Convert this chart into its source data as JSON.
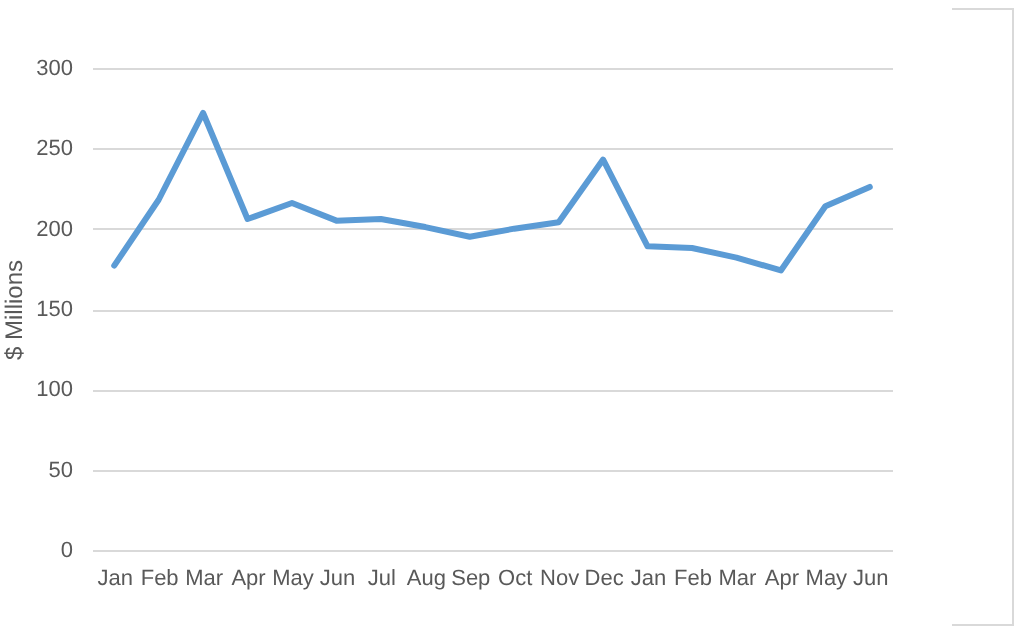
{
  "chart_data": {
    "type": "line",
    "ylabel": "$ Millions",
    "categories": [
      "Jan",
      "Feb",
      "Mar",
      "Apr",
      "May",
      "Jun",
      "Jul",
      "Aug",
      "Sep",
      "Oct",
      "Nov",
      "Dec",
      "Jan",
      "Feb",
      "Mar",
      "Apr",
      "May",
      "Jun"
    ],
    "series": [
      {
        "color": "#5b9bd5",
        "values": [
          177,
          218,
          272,
          206,
          216,
          205,
          206,
          201,
          195,
          200,
          204,
          243,
          189,
          188,
          182,
          174,
          214,
          226
        ]
      }
    ],
    "ylim": [
      0,
      300
    ],
    "yticks": [
      0,
      50,
      100,
      150,
      200,
      250,
      300
    ],
    "grid": "y",
    "legend": false,
    "marker": "none",
    "line_style": "solid"
  }
}
